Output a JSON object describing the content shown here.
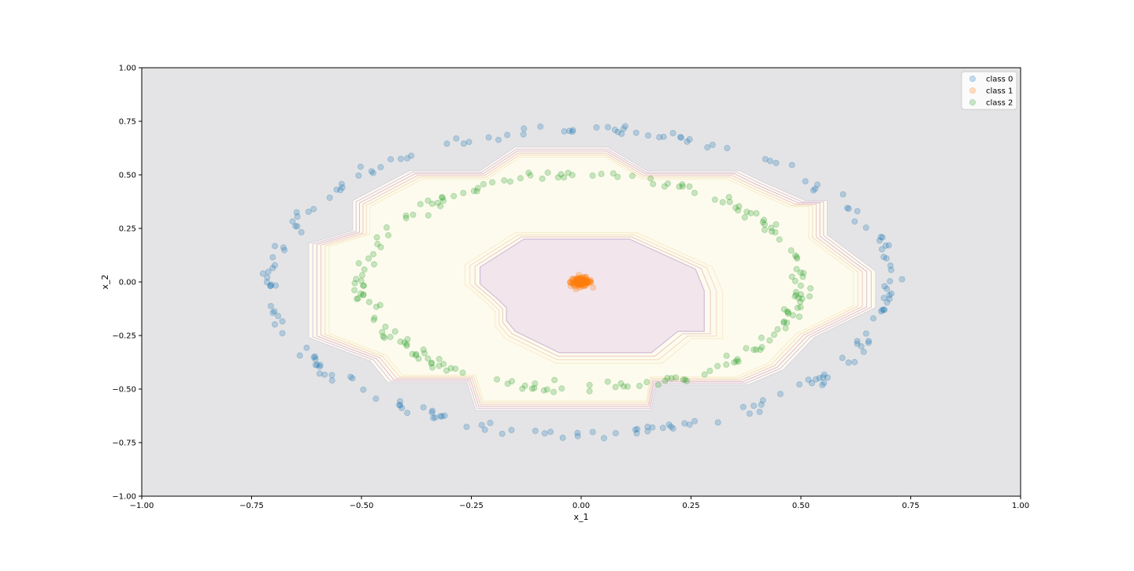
{
  "chart_data": {
    "type": "scatter",
    "title": "",
    "xlabel": "x_1",
    "ylabel": "x_2",
    "xlim": [
      -1.0,
      1.0
    ],
    "ylim": [
      -1.0,
      1.0
    ],
    "xticks": [
      -1.0,
      -0.75,
      -0.5,
      -0.25,
      0.0,
      0.25,
      0.5,
      0.75,
      1.0
    ],
    "yticks": [
      -1.0,
      -0.75,
      -0.5,
      -0.25,
      0.0,
      0.25,
      0.5,
      0.75,
      1.0
    ],
    "xtick_labels": [
      "−1.00",
      "−0.75",
      "−0.50",
      "−0.25",
      "0.00",
      "0.25",
      "0.50",
      "0.75",
      "1.00"
    ],
    "ytick_labels": [
      "−1.00",
      "−0.75",
      "−0.50",
      "−0.25",
      "0.00",
      "0.25",
      "0.50",
      "0.75",
      "1.00"
    ],
    "grid": false,
    "legend_position": "top-right",
    "background_color": "#e4e4e6",
    "series": [
      {
        "name": "class 0",
        "color": "#1f77b4",
        "ellipse": {
          "cx": 0.0,
          "cy": 0.0,
          "rx": 0.705,
          "ry": 0.71,
          "jitter": 0.012
        },
        "n_points": 200
      },
      {
        "name": "class 1",
        "color": "#ff7f0e",
        "cluster": {
          "cx": 0.0,
          "cy": 0.0,
          "sx": 0.012,
          "sy": 0.01
        },
        "n_points": 120
      },
      {
        "name": "class 2",
        "color": "#2ca02c",
        "ellipse": {
          "cx": 0.0,
          "cy": 0.0,
          "rx": 0.5,
          "ry": 0.5,
          "jitter": 0.012
        },
        "n_points": 200
      }
    ],
    "decision_regions": {
      "outer_boundary": [
        [
          -0.62,
          -0.26
        ],
        [
          -0.62,
          0.18
        ],
        [
          -0.52,
          0.24
        ],
        [
          -0.52,
          0.38
        ],
        [
          -0.39,
          0.52
        ],
        [
          -0.23,
          0.52
        ],
        [
          -0.15,
          0.63
        ],
        [
          0.06,
          0.63
        ],
        [
          0.15,
          0.52
        ],
        [
          0.36,
          0.52
        ],
        [
          0.41,
          0.47
        ],
        [
          0.51,
          0.38
        ],
        [
          0.56,
          0.38
        ],
        [
          0.56,
          0.22
        ],
        [
          0.67,
          0.05
        ],
        [
          0.67,
          -0.12
        ],
        [
          0.53,
          -0.26
        ],
        [
          0.46,
          -0.41
        ],
        [
          0.38,
          -0.48
        ],
        [
          0.17,
          -0.48
        ],
        [
          0.16,
          -0.6
        ],
        [
          -0.24,
          -0.6
        ],
        [
          -0.26,
          -0.47
        ],
        [
          -0.44,
          -0.47
        ],
        [
          -0.48,
          -0.37
        ]
      ],
      "inner_boundary": [
        [
          -0.23,
          0.07
        ],
        [
          -0.23,
          -0.01
        ],
        [
          -0.19,
          -0.08
        ],
        [
          -0.17,
          -0.12
        ],
        [
          -0.17,
          -0.18
        ],
        [
          -0.15,
          -0.23
        ],
        [
          -0.05,
          -0.33
        ],
        [
          0.16,
          -0.33
        ],
        [
          0.22,
          -0.23
        ],
        [
          0.28,
          -0.23
        ],
        [
          0.28,
          -0.04
        ],
        [
          0.26,
          0.06
        ],
        [
          0.11,
          0.2
        ],
        [
          -0.13,
          0.2
        ]
      ],
      "outer_region_color": "#e4e4e6",
      "ring_region_color": "#fdfbee",
      "inner_region_color": "#f2e5ec",
      "contour_colors": [
        "#d9d3e0",
        "#d8c3dc",
        "#e0bcd2",
        "#ebc9c6",
        "#f4dcbe",
        "#f8ebc8"
      ]
    }
  }
}
